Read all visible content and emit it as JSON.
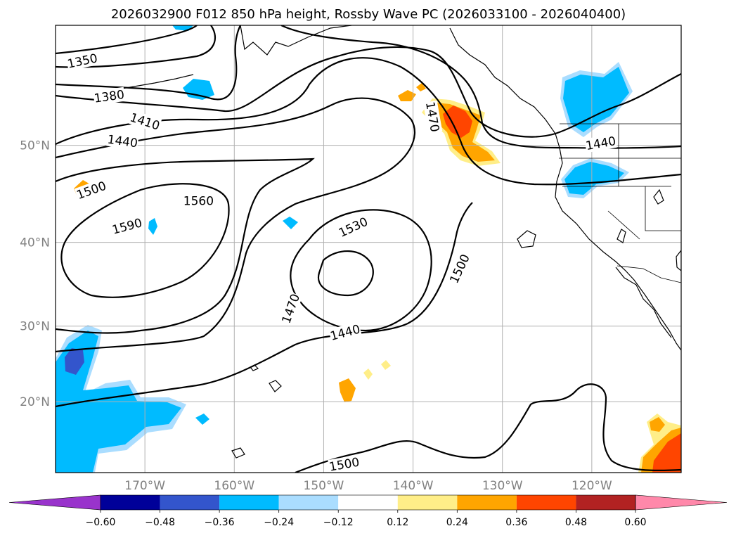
{
  "title": "2026032900 F012 850 hPa height, Rossby Wave PC (2026033100 - 2026040400)",
  "map": {
    "lon_range": [
      -180,
      -110
    ],
    "lat_range": [
      10,
      60
    ],
    "lon_ticks": [
      {
        "value": -170,
        "label": "170°W"
      },
      {
        "value": -160,
        "label": "160°W"
      },
      {
        "value": -150,
        "label": "150°W"
      },
      {
        "value": -140,
        "label": "140°W"
      },
      {
        "value": -130,
        "label": "130°W"
      },
      {
        "value": -120,
        "label": "120°W"
      }
    ],
    "lat_ticks": [
      {
        "value": 20,
        "label": "20°N"
      },
      {
        "value": 30,
        "label": "30°N"
      },
      {
        "value": 40,
        "label": "40°N"
      },
      {
        "value": 50,
        "label": "50°N"
      }
    ],
    "grid": true
  },
  "height_contour_labels": [
    {
      "text": "1350",
      "lon": -177.0,
      "lat": 57.3,
      "rot": -12
    },
    {
      "text": "1380",
      "lon": -174.0,
      "lat": 54.4,
      "rot": -8
    },
    {
      "text": "1410",
      "lon": -170.0,
      "lat": 52.2,
      "rot": 18
    },
    {
      "text": "1440",
      "lon": -172.5,
      "lat": 50.4,
      "rot": 8
    },
    {
      "text": "1500",
      "lon": -176.0,
      "lat": 45.6,
      "rot": -20
    },
    {
      "text": "1560",
      "lon": -164.0,
      "lat": 44.5,
      "rot": 0
    },
    {
      "text": "1590",
      "lon": -172.0,
      "lat": 41.8,
      "rot": -15
    },
    {
      "text": "1530",
      "lon": -146.7,
      "lat": 41.7,
      "rot": -25
    },
    {
      "text": "1470",
      "lon": -137.8,
      "lat": 52.6,
      "rot": 80
    },
    {
      "text": "1440",
      "lon": -119.0,
      "lat": 50.2,
      "rot": -10
    },
    {
      "text": "1500",
      "lon": -134.8,
      "lat": 37.0,
      "rot": -65
    },
    {
      "text": "1470",
      "lon": -153.7,
      "lat": 32.2,
      "rot": -70
    },
    {
      "text": "1440",
      "lon": -147.6,
      "lat": 29.2,
      "rot": -15
    },
    {
      "text": "1500",
      "lon": -147.7,
      "lat": 11.2,
      "rot": -10
    }
  ],
  "colorbar": {
    "levels": [
      -0.6,
      -0.48,
      -0.36,
      -0.24,
      -0.12,
      0.12,
      0.24,
      0.36,
      0.48,
      0.6
    ],
    "tick_labels": [
      "−0.60",
      "−0.48",
      "−0.36",
      "−0.24",
      "−0.12",
      "0.12",
      "0.24",
      "0.36",
      "0.48",
      "0.60"
    ],
    "colors": [
      "#9933cc",
      "#000099",
      "#3355cc",
      "#00bbff",
      "#aaddff",
      "#ffffff",
      "#ffee88",
      "#ffa500",
      "#ff4500",
      "#b22222",
      "#ff88aa"
    ],
    "extend": "both"
  }
}
